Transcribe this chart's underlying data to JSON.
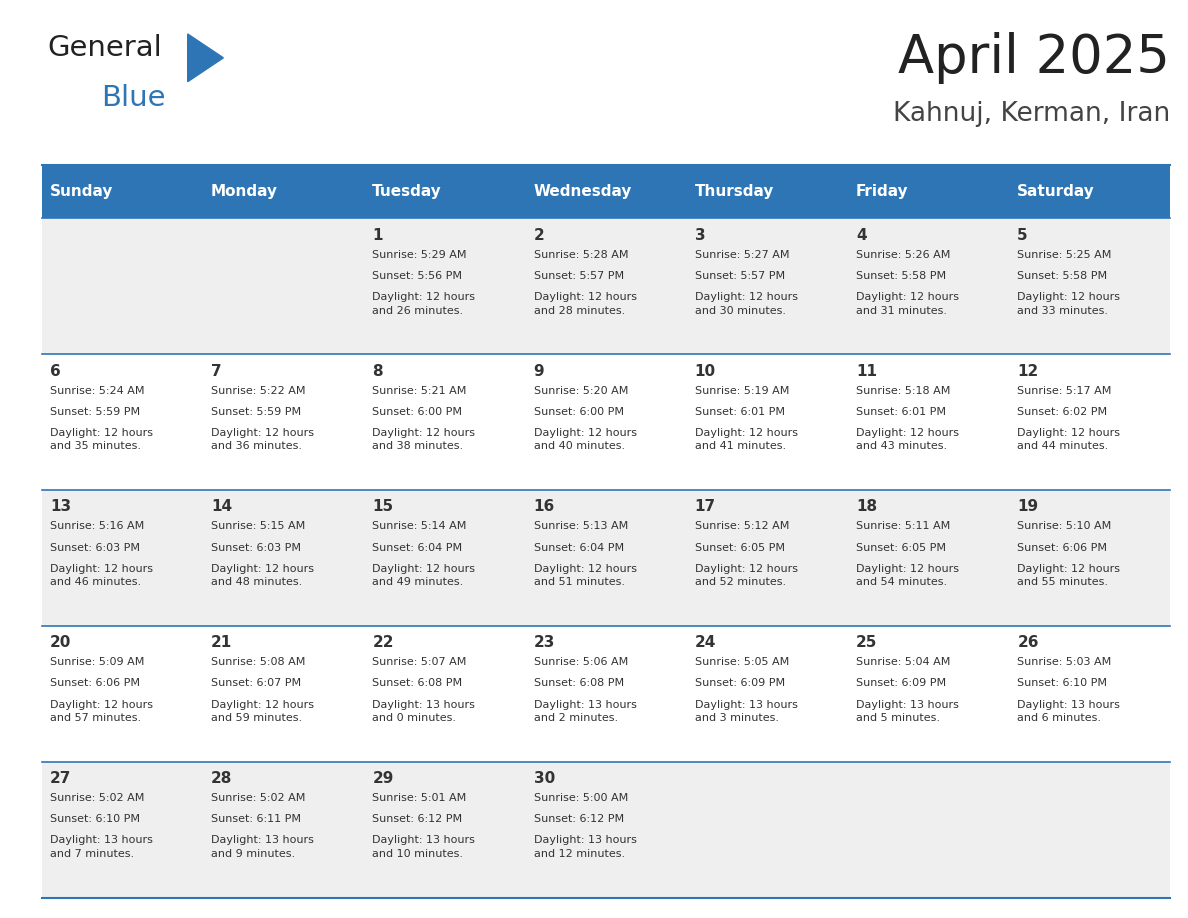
{
  "title": "April 2025",
  "subtitle": "Kahnuj, Kerman, Iran",
  "header_bg": "#2E75B6",
  "header_text_color": "#FFFFFF",
  "days_of_week": [
    "Sunday",
    "Monday",
    "Tuesday",
    "Wednesday",
    "Thursday",
    "Friday",
    "Saturday"
  ],
  "weeks": [
    [
      {
        "day": "",
        "sunrise": "",
        "sunset": "",
        "daylight": ""
      },
      {
        "day": "",
        "sunrise": "",
        "sunset": "",
        "daylight": ""
      },
      {
        "day": "1",
        "sunrise": "Sunrise: 5:29 AM",
        "sunset": "Sunset: 5:56 PM",
        "daylight": "Daylight: 12 hours\nand 26 minutes."
      },
      {
        "day": "2",
        "sunrise": "Sunrise: 5:28 AM",
        "sunset": "Sunset: 5:57 PM",
        "daylight": "Daylight: 12 hours\nand 28 minutes."
      },
      {
        "day": "3",
        "sunrise": "Sunrise: 5:27 AM",
        "sunset": "Sunset: 5:57 PM",
        "daylight": "Daylight: 12 hours\nand 30 minutes."
      },
      {
        "day": "4",
        "sunrise": "Sunrise: 5:26 AM",
        "sunset": "Sunset: 5:58 PM",
        "daylight": "Daylight: 12 hours\nand 31 minutes."
      },
      {
        "day": "5",
        "sunrise": "Sunrise: 5:25 AM",
        "sunset": "Sunset: 5:58 PM",
        "daylight": "Daylight: 12 hours\nand 33 minutes."
      }
    ],
    [
      {
        "day": "6",
        "sunrise": "Sunrise: 5:24 AM",
        "sunset": "Sunset: 5:59 PM",
        "daylight": "Daylight: 12 hours\nand 35 minutes."
      },
      {
        "day": "7",
        "sunrise": "Sunrise: 5:22 AM",
        "sunset": "Sunset: 5:59 PM",
        "daylight": "Daylight: 12 hours\nand 36 minutes."
      },
      {
        "day": "8",
        "sunrise": "Sunrise: 5:21 AM",
        "sunset": "Sunset: 6:00 PM",
        "daylight": "Daylight: 12 hours\nand 38 minutes."
      },
      {
        "day": "9",
        "sunrise": "Sunrise: 5:20 AM",
        "sunset": "Sunset: 6:00 PM",
        "daylight": "Daylight: 12 hours\nand 40 minutes."
      },
      {
        "day": "10",
        "sunrise": "Sunrise: 5:19 AM",
        "sunset": "Sunset: 6:01 PM",
        "daylight": "Daylight: 12 hours\nand 41 minutes."
      },
      {
        "day": "11",
        "sunrise": "Sunrise: 5:18 AM",
        "sunset": "Sunset: 6:01 PM",
        "daylight": "Daylight: 12 hours\nand 43 minutes."
      },
      {
        "day": "12",
        "sunrise": "Sunrise: 5:17 AM",
        "sunset": "Sunset: 6:02 PM",
        "daylight": "Daylight: 12 hours\nand 44 minutes."
      }
    ],
    [
      {
        "day": "13",
        "sunrise": "Sunrise: 5:16 AM",
        "sunset": "Sunset: 6:03 PM",
        "daylight": "Daylight: 12 hours\nand 46 minutes."
      },
      {
        "day": "14",
        "sunrise": "Sunrise: 5:15 AM",
        "sunset": "Sunset: 6:03 PM",
        "daylight": "Daylight: 12 hours\nand 48 minutes."
      },
      {
        "day": "15",
        "sunrise": "Sunrise: 5:14 AM",
        "sunset": "Sunset: 6:04 PM",
        "daylight": "Daylight: 12 hours\nand 49 minutes."
      },
      {
        "day": "16",
        "sunrise": "Sunrise: 5:13 AM",
        "sunset": "Sunset: 6:04 PM",
        "daylight": "Daylight: 12 hours\nand 51 minutes."
      },
      {
        "day": "17",
        "sunrise": "Sunrise: 5:12 AM",
        "sunset": "Sunset: 6:05 PM",
        "daylight": "Daylight: 12 hours\nand 52 minutes."
      },
      {
        "day": "18",
        "sunrise": "Sunrise: 5:11 AM",
        "sunset": "Sunset: 6:05 PM",
        "daylight": "Daylight: 12 hours\nand 54 minutes."
      },
      {
        "day": "19",
        "sunrise": "Sunrise: 5:10 AM",
        "sunset": "Sunset: 6:06 PM",
        "daylight": "Daylight: 12 hours\nand 55 minutes."
      }
    ],
    [
      {
        "day": "20",
        "sunrise": "Sunrise: 5:09 AM",
        "sunset": "Sunset: 6:06 PM",
        "daylight": "Daylight: 12 hours\nand 57 minutes."
      },
      {
        "day": "21",
        "sunrise": "Sunrise: 5:08 AM",
        "sunset": "Sunset: 6:07 PM",
        "daylight": "Daylight: 12 hours\nand 59 minutes."
      },
      {
        "day": "22",
        "sunrise": "Sunrise: 5:07 AM",
        "sunset": "Sunset: 6:08 PM",
        "daylight": "Daylight: 13 hours\nand 0 minutes."
      },
      {
        "day": "23",
        "sunrise": "Sunrise: 5:06 AM",
        "sunset": "Sunset: 6:08 PM",
        "daylight": "Daylight: 13 hours\nand 2 minutes."
      },
      {
        "day": "24",
        "sunrise": "Sunrise: 5:05 AM",
        "sunset": "Sunset: 6:09 PM",
        "daylight": "Daylight: 13 hours\nand 3 minutes."
      },
      {
        "day": "25",
        "sunrise": "Sunrise: 5:04 AM",
        "sunset": "Sunset: 6:09 PM",
        "daylight": "Daylight: 13 hours\nand 5 minutes."
      },
      {
        "day": "26",
        "sunrise": "Sunrise: 5:03 AM",
        "sunset": "Sunset: 6:10 PM",
        "daylight": "Daylight: 13 hours\nand 6 minutes."
      }
    ],
    [
      {
        "day": "27",
        "sunrise": "Sunrise: 5:02 AM",
        "sunset": "Sunset: 6:10 PM",
        "daylight": "Daylight: 13 hours\nand 7 minutes."
      },
      {
        "day": "28",
        "sunrise": "Sunrise: 5:02 AM",
        "sunset": "Sunset: 6:11 PM",
        "daylight": "Daylight: 13 hours\nand 9 minutes."
      },
      {
        "day": "29",
        "sunrise": "Sunrise: 5:01 AM",
        "sunset": "Sunset: 6:12 PM",
        "daylight": "Daylight: 13 hours\nand 10 minutes."
      },
      {
        "day": "30",
        "sunrise": "Sunrise: 5:00 AM",
        "sunset": "Sunset: 6:12 PM",
        "daylight": "Daylight: 13 hours\nand 12 minutes."
      },
      {
        "day": "",
        "sunrise": "",
        "sunset": "",
        "daylight": ""
      },
      {
        "day": "",
        "sunrise": "",
        "sunset": "",
        "daylight": ""
      },
      {
        "day": "",
        "sunrise": "",
        "sunset": "",
        "daylight": ""
      }
    ]
  ],
  "cell_bg_even": "#EFEFEF",
  "cell_bg_odd": "#FFFFFF",
  "border_color": "#2E75B6",
  "text_color": "#333333",
  "day_num_color": "#333333",
  "logo_triangle_color": "#2E75B6",
  "logo_text_color": "#222222",
  "title_color": "#222222",
  "subtitle_color": "#444444"
}
